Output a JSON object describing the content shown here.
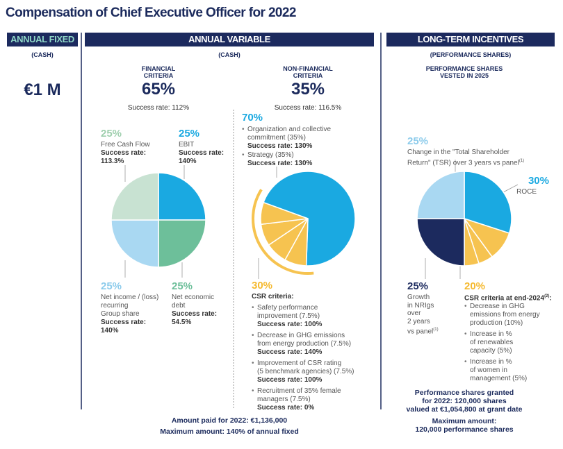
{
  "title": "Compensation of Chief Executive Officer for 2022",
  "annual_fixed": {
    "header": "ANNUAL FIXED",
    "subheader": "(CASH)",
    "amount": "€1 M"
  },
  "annual_variable": {
    "header": "ANNUAL VARIABLE",
    "subheader": "(CASH)",
    "financial": {
      "heading": [
        "FINANCIAL",
        "CRITERIA"
      ],
      "share": "65%",
      "success_rate": "Success rate: 112%",
      "slices": [
        {
          "share": {
            "value": 25,
            "label": "25%"
          },
          "color": "#c8e2d2",
          "label_color": "#9fcfae",
          "lines": [
            "Free Cash Flow"
          ],
          "success": [
            "Success rate:",
            "113.3%"
          ]
        },
        {
          "share": {
            "value": 25,
            "label": "25%"
          },
          "color": "#1aa9e1",
          "label_color": "#1aa9e1",
          "lines": [
            "EBIT"
          ],
          "success": [
            "Success rate:",
            "140%"
          ]
        },
        {
          "share": {
            "value": 25,
            "label": "25%"
          },
          "color": "#a9d8f2",
          "label_color": "#8ccbeb",
          "lines": [
            "Net income / (loss)",
            "recurring",
            "Group share"
          ],
          "success": [
            "Success rate:",
            "140%"
          ]
        },
        {
          "share": {
            "value": 25,
            "label": "25%"
          },
          "color": "#6dbf9a",
          "label_color": "#6dbf9a",
          "lines": [
            "Net economic",
            "debt"
          ],
          "success": [
            "Success rate:",
            "54.5%"
          ]
        }
      ]
    },
    "non_financial": {
      "heading": [
        "NON-FINANCIAL",
        "CRITERIA"
      ],
      "share": "35%",
      "success_rate": "Success rate: 116.5%",
      "collective": {
        "share": {
          "value": 70,
          "label": "70%"
        },
        "color": "#1aa9e1",
        "items": [
          {
            "lines": [
              "Organization and collective",
              "commitment (35%)"
            ],
            "success": "Success rate: 130%"
          },
          {
            "lines": [
              "Strategy (35%)"
            ],
            "success": "Success rate: 130%"
          }
        ]
      },
      "csr": {
        "share": {
          "value": 30,
          "label": "30%"
        },
        "color": "#f6c350",
        "label_color": "#f5b92e",
        "heading": "CSR criteria:",
        "items": [
          {
            "lines": [
              "Safety performance",
              "improvement (7.5%)"
            ],
            "weight": 7.5,
            "success": "Success rate: 100%"
          },
          {
            "lines": [
              "Decrease in GHG emissions",
              "from energy production (7.5%)"
            ],
            "weight": 7.5,
            "success": "Success rate: 140%"
          },
          {
            "lines": [
              "Improvement of CSR rating",
              "(5 benchmark agencies) (7.5%)"
            ],
            "weight": 7.5,
            "success": "Success rate: 100%"
          },
          {
            "lines": [
              "Recruitment of 35% female",
              "managers (7.5%)"
            ],
            "weight": 7.5,
            "success": "Success rate: 0%"
          }
        ]
      }
    },
    "footer": [
      "Amount paid for 2022: €1,136,000",
      "Maximum amount: 140% of annual fixed"
    ]
  },
  "long_term_incentives": {
    "header": "LONG-TERM INCENTIVES",
    "subheader": "(PERFORMANCE SHARES)",
    "heading": [
      "PERFORMANCE SHARES",
      "VESTED IN 2025"
    ],
    "tsr": {
      "share": {
        "value": 25,
        "label": "25%"
      },
      "color": "#a9d8f2",
      "label_color": "#8ccbeb",
      "lines": [
        "Change in the \"Total Shareholder",
        "Return\" (TSR) over 3 years vs panel"
      ],
      "note": "(1)"
    },
    "roce": {
      "share": {
        "value": 30,
        "label": "30%"
      },
      "color": "#1aa9e1",
      "lines": [
        "ROCE"
      ]
    },
    "nrigs": {
      "share": {
        "value": 25,
        "label": "25%"
      },
      "color": "#1c2a5e",
      "lines": [
        "Growth",
        "in NRIgs",
        "over",
        "2 years",
        "vs panel"
      ],
      "note": "(1)"
    },
    "csr": {
      "share": {
        "value": 20,
        "label": "20%"
      },
      "color": "#f6c350",
      "label_color": "#f5b92e",
      "heading": "CSR criteria at end-2024",
      "note": "(2)",
      "heading_suffix": ":",
      "items": [
        {
          "lines": [
            "Decrease in GHG",
            "emissions from energy",
            "production (10%)"
          ],
          "weight": 10
        },
        {
          "lines": [
            "Increase in %",
            "of renewables",
            "capacity (5%)"
          ],
          "weight": 5
        },
        {
          "lines": [
            "Increase in %",
            "of women in",
            "management (5%)"
          ],
          "weight": 5
        }
      ]
    },
    "footer": [
      "Performance shares granted",
      "for 2022: 120,000 shares",
      "valued at €1,054,800 at grant date",
      "Maximum amount:",
      "120,000 performance shares"
    ]
  }
}
